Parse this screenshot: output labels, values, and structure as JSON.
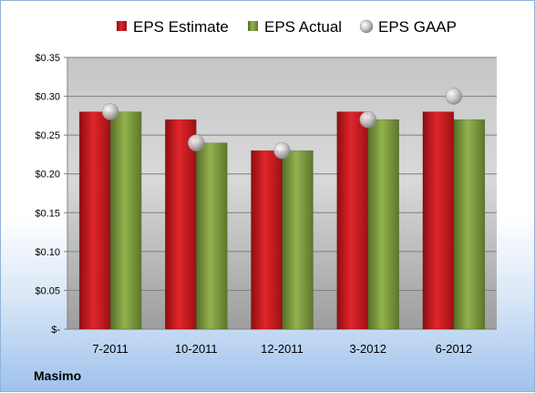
{
  "company": "Masimo",
  "chart_data": {
    "type": "bar",
    "categories": [
      "7-2011",
      "10-2011",
      "12-2011",
      "3-2012",
      "6-2012"
    ],
    "series": [
      {
        "name": "EPS Estimate",
        "values": [
          0.28,
          0.27,
          0.23,
          0.28,
          0.28
        ],
        "color": "#c0171c"
      },
      {
        "name": "EPS Actual",
        "values": [
          0.28,
          0.24,
          0.23,
          0.27,
          0.27
        ],
        "color": "#77953a"
      }
    ],
    "markers": {
      "name": "EPS GAAP",
      "values": [
        0.28,
        0.24,
        0.23,
        0.27,
        0.3
      ],
      "color": "#b8b8b8"
    },
    "ylim": [
      0,
      0.35
    ],
    "yticks": [
      0,
      0.05,
      0.1,
      0.15,
      0.2,
      0.25,
      0.3,
      0.35
    ],
    "ytick_labels": [
      "$-",
      "$0.05",
      "$0.10",
      "$0.15",
      "$0.20",
      "$0.25",
      "$0.30",
      "$0.35"
    ],
    "legend_position": "top",
    "grid": true
  }
}
